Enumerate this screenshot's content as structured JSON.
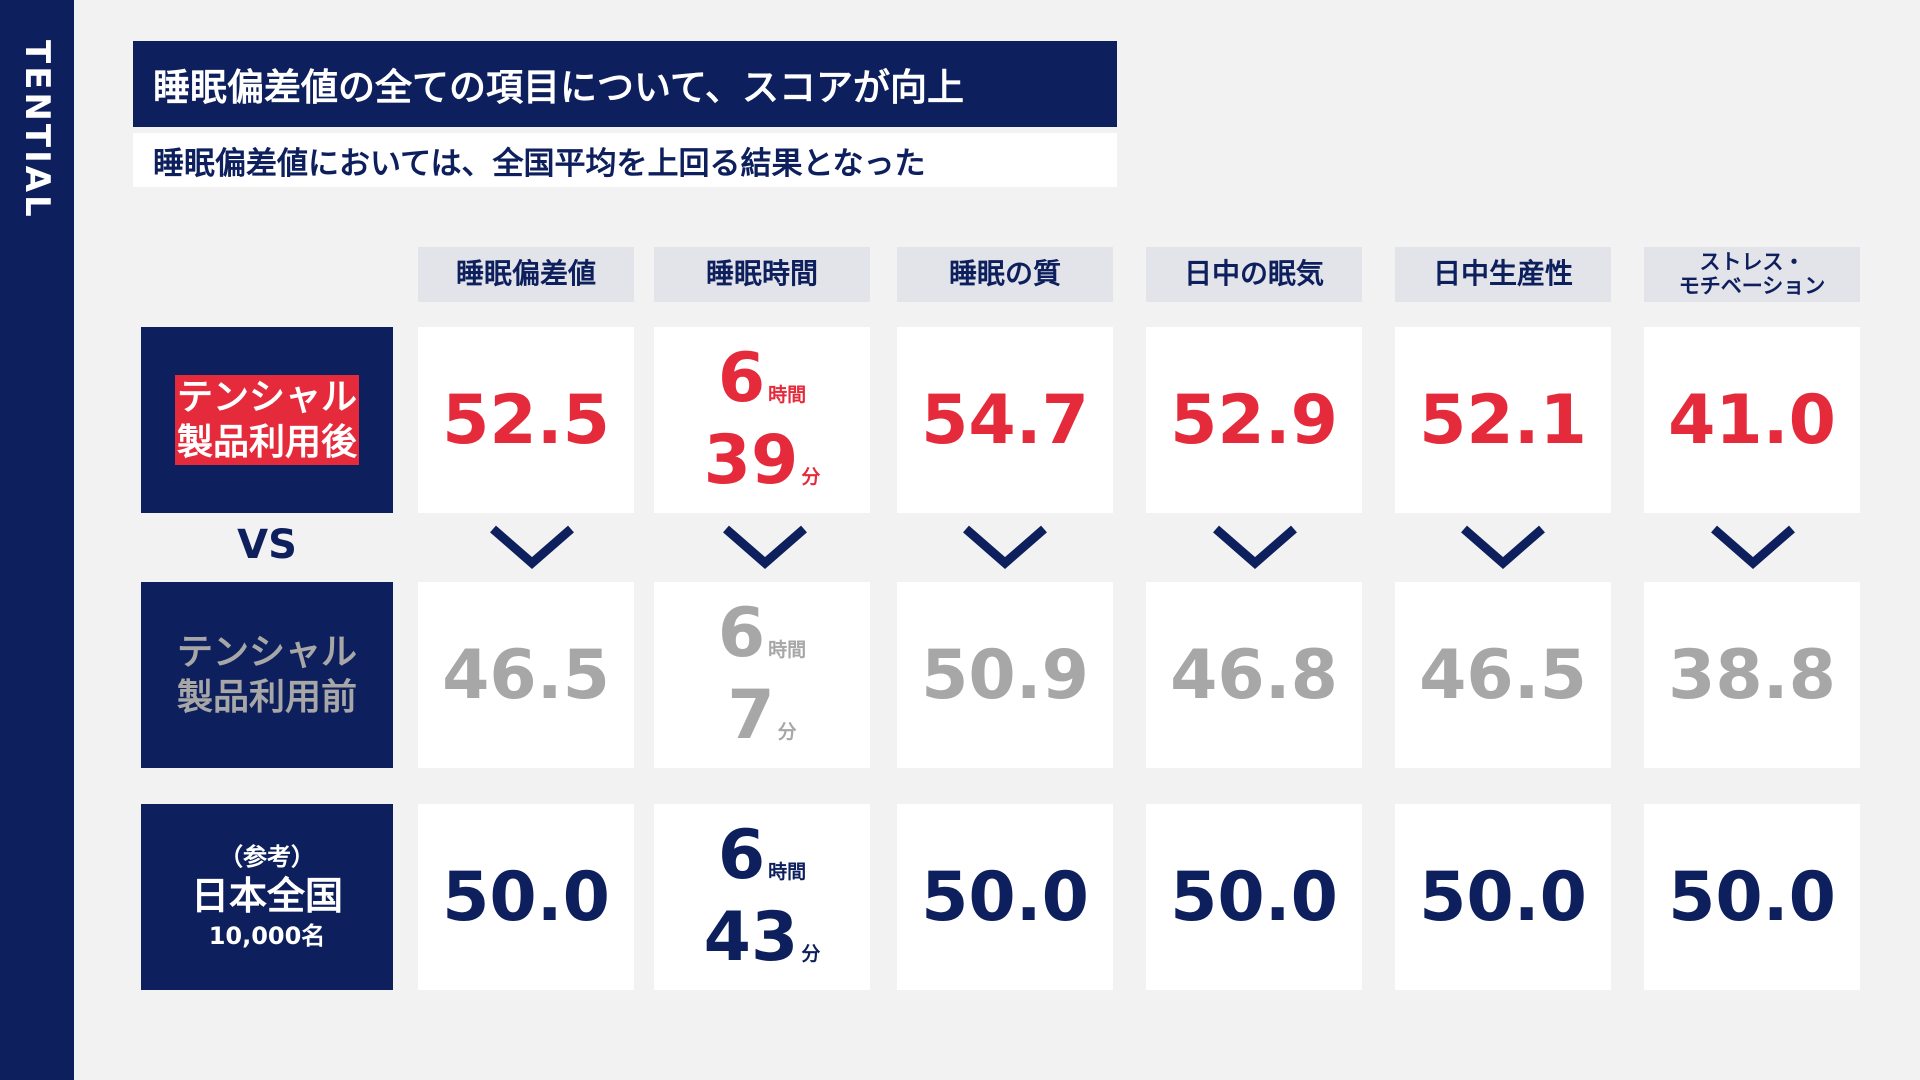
{
  "brand": "TENTIAL",
  "title": "睡眠偏差値の全ての項目について、スコアが向上",
  "subtitle": "睡眠偏差値においては、全国平均を上回る結果となった",
  "columns": [
    "睡眠偏差値",
    "睡眠時間",
    "睡眠の質",
    "日中の眠気",
    "日中生産性",
    "ストレス・\nモチベーション"
  ],
  "vs": "VS",
  "rows": {
    "after": {
      "label_line1": "テンシャル",
      "label_line2": "製品利用後",
      "values": [
        "52.5",
        "54.7",
        "52.9",
        "52.1",
        "41.0"
      ],
      "sleep_hours": "6",
      "sleep_minutes": "39"
    },
    "before": {
      "label_line1": "テンシャル",
      "label_line2": "製品利用前",
      "values": [
        "46.5",
        "50.9",
        "46.8",
        "46.5",
        "38.8"
      ],
      "sleep_hours": "6",
      "sleep_minutes": "7"
    },
    "national": {
      "label_sub": "（参考）",
      "label_main": "日本全国",
      "label_count": "10,000名",
      "values": [
        "50.0",
        "50.0",
        "50.0",
        "50.0",
        "50.0"
      ],
      "sleep_hours": "6",
      "sleep_minutes": "43"
    }
  },
  "units": {
    "hours": "時間",
    "minutes": "分"
  },
  "colors": {
    "navy": "#0d1f5c",
    "red": "#e52b3b",
    "gray": "#a7a7a7",
    "header_bg": "#e3e4ea",
    "page_bg": "#f2f2f2"
  },
  "icons": {
    "improvement_marker": "chevron-down-icon"
  }
}
